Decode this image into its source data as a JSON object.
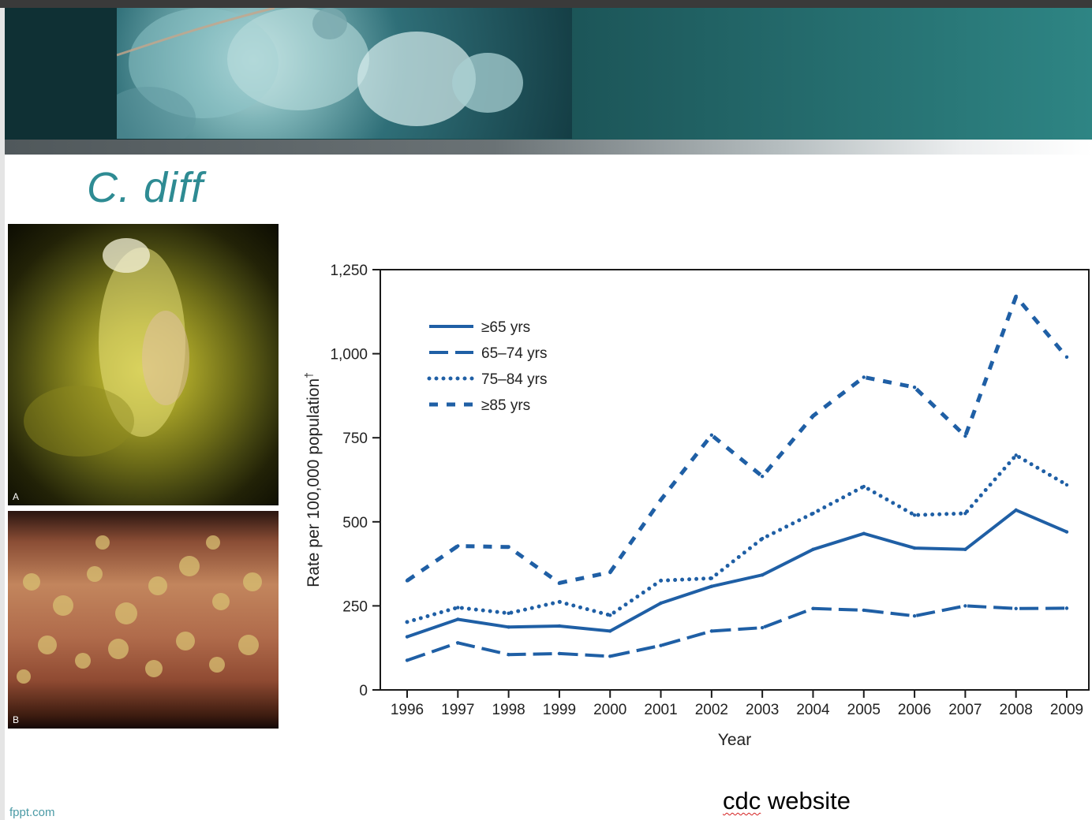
{
  "slide": {
    "title": "C. diff",
    "footer": "fppt.com",
    "source_word": "cdc",
    "source_rest": " website",
    "photo_a_label": "A",
    "photo_b_label": "B"
  },
  "colors": {
    "title": "#2e8b93",
    "series": "#1f5fa5"
  },
  "chart_data": {
    "type": "line",
    "xlabel": "Year",
    "ylabel": "Rate per 100,000 population",
    "ylabel_marker": "†",
    "ylim": [
      0,
      1250
    ],
    "yticks": [
      0,
      250,
      500,
      750,
      1000,
      1250
    ],
    "ytick_labels": [
      "0",
      "250",
      "500",
      "750",
      "1,000",
      "1,250"
    ],
    "x": [
      "1996",
      "1997",
      "1998",
      "1999",
      "2000",
      "2001",
      "2002",
      "2003",
      "2004",
      "2005",
      "2006",
      "2007",
      "2008",
      "2009"
    ],
    "legend_position": "top-left",
    "series": [
      {
        "name": "≥65 yrs",
        "style": "solid",
        "values": [
          158,
          210,
          187,
          190,
          175,
          258,
          308,
          342,
          418,
          465,
          422,
          418,
          535,
          470
        ]
      },
      {
        "name": "65–74 yrs",
        "style": "dashed",
        "values": [
          88,
          140,
          105,
          108,
          100,
          132,
          175,
          185,
          242,
          237,
          220,
          250,
          242,
          243
        ]
      },
      {
        "name": "75–84 yrs",
        "style": "dotted",
        "values": [
          202,
          245,
          228,
          262,
          222,
          325,
          332,
          450,
          525,
          605,
          520,
          525,
          698,
          610
        ]
      },
      {
        "name": "≥85 yrs",
        "style": "dash-dot",
        "values": [
          325,
          428,
          425,
          318,
          350,
          565,
          758,
          635,
          815,
          930,
          900,
          755,
          1170,
          990
        ]
      }
    ]
  }
}
